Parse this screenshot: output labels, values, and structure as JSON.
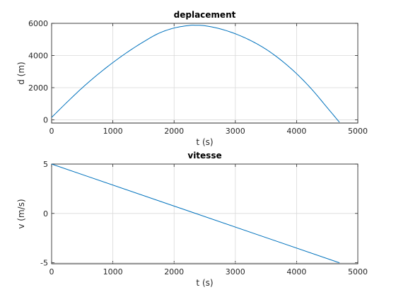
{
  "chart_data": [
    {
      "type": "line",
      "title": "deplacement",
      "xlabel": "t (s)",
      "ylabel": "d (m)",
      "xlim": [
        0,
        5000
      ],
      "ylim": [
        -200,
        6000
      ],
      "xticks": [
        0,
        1000,
        2000,
        3000,
        4000,
        5000
      ],
      "yticks": [
        0,
        2000,
        4000,
        6000
      ],
      "grid": true,
      "color": "#0072bd",
      "series": [
        {
          "x": [
            0,
            250,
            500,
            750,
            1000,
            1250,
            1500,
            1750,
            2000,
            2250,
            2350,
            2500,
            2750,
            3000,
            3250,
            3500,
            3750,
            4000,
            4250,
            4500,
            4700
          ],
          "values": [
            150,
            1090,
            1990,
            2810,
            3560,
            4240,
            4850,
            5380,
            5710,
            5870,
            5880,
            5850,
            5660,
            5350,
            4930,
            4390,
            3700,
            2870,
            1890,
            760,
            -150
          ]
        }
      ]
    },
    {
      "type": "line",
      "title": "vitesse",
      "xlabel": "t (s)",
      "ylabel": "v (m/s)",
      "xlim": [
        0,
        5000
      ],
      "ylim": [
        -5.1,
        5
      ],
      "xticks": [
        0,
        1000,
        2000,
        3000,
        4000,
        5000
      ],
      "yticks": [
        -5,
        0,
        5
      ],
      "grid": true,
      "color": "#0072bd",
      "series": [
        {
          "x": [
            0,
            4700
          ],
          "values": [
            5,
            -5
          ]
        }
      ]
    }
  ]
}
